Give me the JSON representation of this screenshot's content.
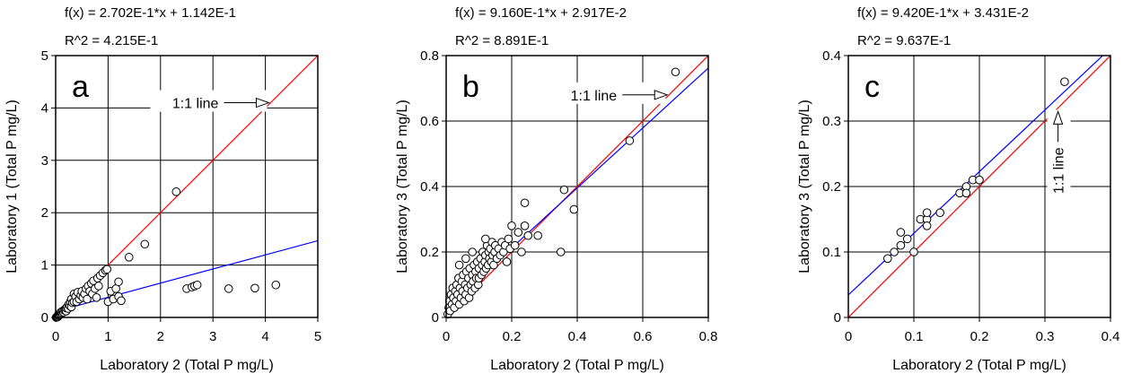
{
  "chart_data": [
    {
      "type": "scatter",
      "panel_label": "a",
      "equation": "f(x) = 2.702E-1*x + 1.142E-1",
      "r2": "R^2 = 4.215E-1",
      "xlabel": "Laboratory 2 (Total P mg/L)",
      "ylabel": "Laboratory 1 (Total P mg/L)",
      "xlim": [
        0,
        5
      ],
      "ylim": [
        0,
        5
      ],
      "xticks": [
        0,
        1,
        2,
        3,
        4,
        5
      ],
      "yticks": [
        0,
        1,
        2,
        3,
        4,
        5
      ],
      "grid": true,
      "annotation": {
        "text": "1:1 line",
        "x": 4.1,
        "y": 4.1
      },
      "fit": {
        "slope": 0.2702,
        "intercept": 0.1142,
        "color": "#0000ff"
      },
      "identity_line_color": "#ff0000",
      "points": [
        [
          0.01,
          0.0
        ],
        [
          0.02,
          0.01
        ],
        [
          0.03,
          0.02
        ],
        [
          0.04,
          0.01
        ],
        [
          0.05,
          0.03
        ],
        [
          0.05,
          0.05
        ],
        [
          0.06,
          0.04
        ],
        [
          0.07,
          0.06
        ],
        [
          0.08,
          0.05
        ],
        [
          0.09,
          0.08
        ],
        [
          0.1,
          0.07
        ],
        [
          0.1,
          0.1
        ],
        [
          0.12,
          0.09
        ],
        [
          0.13,
          0.12
        ],
        [
          0.15,
          0.1
        ],
        [
          0.16,
          0.14
        ],
        [
          0.18,
          0.15
        ],
        [
          0.2,
          0.12
        ],
        [
          0.2,
          0.18
        ],
        [
          0.22,
          0.2
        ],
        [
          0.24,
          0.17
        ],
        [
          0.25,
          0.25
        ],
        [
          0.27,
          0.22
        ],
        [
          0.28,
          0.3
        ],
        [
          0.3,
          0.2
        ],
        [
          0.3,
          0.35
        ],
        [
          0.32,
          0.28
        ],
        [
          0.35,
          0.3
        ],
        [
          0.35,
          0.45
        ],
        [
          0.38,
          0.4
        ],
        [
          0.4,
          0.3
        ],
        [
          0.42,
          0.48
        ],
        [
          0.45,
          0.35
        ],
        [
          0.48,
          0.42
        ],
        [
          0.5,
          0.5
        ],
        [
          0.52,
          0.38
        ],
        [
          0.55,
          0.45
        ],
        [
          0.58,
          0.55
        ],
        [
          0.6,
          0.35
        ],
        [
          0.62,
          0.6
        ],
        [
          0.65,
          0.5
        ],
        [
          0.68,
          0.65
        ],
        [
          0.7,
          0.45
        ],
        [
          0.72,
          0.7
        ],
        [
          0.75,
          0.55
        ],
        [
          0.78,
          0.38
        ],
        [
          0.8,
          0.75
        ],
        [
          0.82,
          0.6
        ],
        [
          0.85,
          0.8
        ],
        [
          0.9,
          0.85
        ],
        [
          0.95,
          0.9
        ],
        [
          0.98,
          0.92
        ],
        [
          1.0,
          0.3
        ],
        [
          1.05,
          0.5
        ],
        [
          1.1,
          0.35
        ],
        [
          1.15,
          0.55
        ],
        [
          1.2,
          0.68
        ],
        [
          1.2,
          0.4
        ],
        [
          1.25,
          0.32
        ],
        [
          1.4,
          1.15
        ],
        [
          1.7,
          1.4
        ],
        [
          2.3,
          2.4
        ],
        [
          2.5,
          0.55
        ],
        [
          2.6,
          0.58
        ],
        [
          2.65,
          0.6
        ],
        [
          2.7,
          0.62
        ],
        [
          3.3,
          0.55
        ],
        [
          3.8,
          0.56
        ],
        [
          4.2,
          0.62
        ]
      ]
    },
    {
      "type": "scatter",
      "panel_label": "b",
      "equation": "f(x) = 9.160E-1*x + 2.917E-2",
      "r2": "R^2 = 8.891E-1",
      "xlabel": "Laboratory 2 (Total P mg/L)",
      "ylabel": "Laboratory 3 (Total P mg/L)",
      "xlim": [
        0,
        0.8
      ],
      "ylim": [
        0,
        0.8
      ],
      "xticks": [
        0,
        0.2,
        0.4,
        0.6,
        0.8
      ],
      "yticks": [
        0,
        0.2,
        0.4,
        0.6,
        0.8
      ],
      "grid": true,
      "annotation": {
        "text": "1:1 line",
        "x": 0.68,
        "y": 0.68
      },
      "fit": {
        "slope": 0.916,
        "intercept": 0.02917,
        "color": "#0000ff"
      },
      "identity_line_color": "#ff0000",
      "points": [
        [
          0.005,
          0.01
        ],
        [
          0.008,
          0.03
        ],
        [
          0.01,
          0.05
        ],
        [
          0.012,
          0.02
        ],
        [
          0.015,
          0.07
        ],
        [
          0.018,
          0.04
        ],
        [
          0.02,
          0.09
        ],
        [
          0.022,
          0.06
        ],
        [
          0.025,
          0.03
        ],
        [
          0.028,
          0.08
        ],
        [
          0.03,
          0.05
        ],
        [
          0.032,
          0.1
        ],
        [
          0.035,
          0.07
        ],
        [
          0.038,
          0.12
        ],
        [
          0.04,
          0.04
        ],
        [
          0.042,
          0.09
        ],
        [
          0.045,
          0.06
        ],
        [
          0.048,
          0.11
        ],
        [
          0.05,
          0.08
        ],
        [
          0.052,
          0.13
        ],
        [
          0.055,
          0.05
        ],
        [
          0.058,
          0.1
        ],
        [
          0.06,
          0.07
        ],
        [
          0.062,
          0.14
        ],
        [
          0.065,
          0.09
        ],
        [
          0.068,
          0.12
        ],
        [
          0.07,
          0.06
        ],
        [
          0.072,
          0.15
        ],
        [
          0.075,
          0.1
        ],
        [
          0.078,
          0.08
        ],
        [
          0.08,
          0.13
        ],
        [
          0.082,
          0.11
        ],
        [
          0.085,
          0.16
        ],
        [
          0.088,
          0.09
        ],
        [
          0.09,
          0.14
        ],
        [
          0.092,
          0.12
        ],
        [
          0.095,
          0.17
        ],
        [
          0.098,
          0.1
        ],
        [
          0.1,
          0.15
        ],
        [
          0.1,
          0.12
        ],
        [
          0.105,
          0.18
        ],
        [
          0.108,
          0.13
        ],
        [
          0.11,
          0.16
        ],
        [
          0.112,
          0.2
        ],
        [
          0.115,
          0.14
        ],
        [
          0.118,
          0.17
        ],
        [
          0.12,
          0.19
        ],
        [
          0.122,
          0.15
        ],
        [
          0.125,
          0.22
        ],
        [
          0.128,
          0.16
        ],
        [
          0.13,
          0.2
        ],
        [
          0.132,
          0.18
        ],
        [
          0.135,
          0.21
        ],
        [
          0.138,
          0.17
        ],
        [
          0.14,
          0.23
        ],
        [
          0.142,
          0.19
        ],
        [
          0.145,
          0.16
        ],
        [
          0.148,
          0.2
        ],
        [
          0.15,
          0.22
        ],
        [
          0.155,
          0.18
        ],
        [
          0.16,
          0.21
        ],
        [
          0.165,
          0.19
        ],
        [
          0.17,
          0.23
        ],
        [
          0.175,
          0.2
        ],
        [
          0.18,
          0.22
        ],
        [
          0.185,
          0.17
        ],
        [
          0.19,
          0.24
        ],
        [
          0.195,
          0.21
        ],
        [
          0.2,
          0.28
        ],
        [
          0.21,
          0.22
        ],
        [
          0.22,
          0.26
        ],
        [
          0.23,
          0.2
        ],
        [
          0.24,
          0.28
        ],
        [
          0.24,
          0.35
        ],
        [
          0.25,
          0.25
        ],
        [
          0.28,
          0.25
        ],
        [
          0.35,
          0.2
        ],
        [
          0.36,
          0.39
        ],
        [
          0.39,
          0.33
        ],
        [
          0.56,
          0.54
        ],
        [
          0.7,
          0.75
        ],
        [
          0.12,
          0.24
        ],
        [
          0.08,
          0.2
        ],
        [
          0.06,
          0.18
        ],
        [
          0.04,
          0.16
        ]
      ]
    },
    {
      "type": "scatter",
      "panel_label": "c",
      "equation": "f(x) = 9.420E-1*x + 3.431E-2",
      "r2": "R^2 = 9.637E-1",
      "xlabel": "Laboratory 2 (Total P mg/L)",
      "ylabel": "Laboratory 3 (Total P mg/L)",
      "xlim": [
        0,
        0.4
      ],
      "ylim": [
        0,
        0.4
      ],
      "xticks": [
        0,
        0.1,
        0.2,
        0.3,
        0.4
      ],
      "yticks": [
        0,
        0.1,
        0.2,
        0.3,
        0.4
      ],
      "grid": true,
      "annotation": {
        "text": "1:1 line",
        "x": 0.32,
        "y": 0.32
      },
      "fit": {
        "slope": 0.942,
        "intercept": 0.03431,
        "color": "#0000ff"
      },
      "identity_line_color": "#ff0000",
      "points": [
        [
          0.06,
          0.09
        ],
        [
          0.07,
          0.1
        ],
        [
          0.08,
          0.11
        ],
        [
          0.08,
          0.13
        ],
        [
          0.09,
          0.12
        ],
        [
          0.1,
          0.1
        ],
        [
          0.11,
          0.15
        ],
        [
          0.12,
          0.15
        ],
        [
          0.12,
          0.14
        ],
        [
          0.12,
          0.16
        ],
        [
          0.14,
          0.16
        ],
        [
          0.17,
          0.19
        ],
        [
          0.18,
          0.2
        ],
        [
          0.18,
          0.19
        ],
        [
          0.19,
          0.21
        ],
        [
          0.2,
          0.21
        ],
        [
          0.33,
          0.36
        ]
      ]
    }
  ]
}
